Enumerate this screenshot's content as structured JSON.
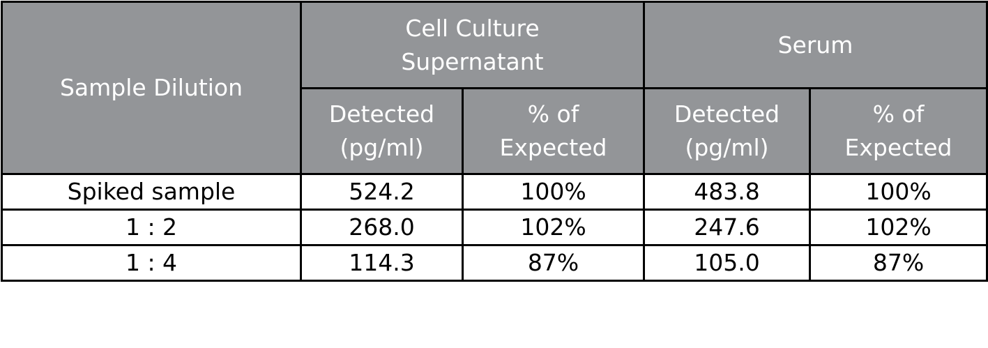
{
  "table": {
    "corner": "Sample Dilution",
    "groups": [
      "Cell Culture Supernatant",
      "Serum"
    ],
    "subheaders": [
      "Detected (pg/ml)",
      "% of Expected",
      "Detected (pg/ml)",
      "% of Expected"
    ],
    "rows": [
      [
        "Spiked sample",
        "524.2",
        "100%",
        "483.8",
        "100%"
      ],
      [
        "1 : 2",
        "268.0",
        "102%",
        "247.6",
        "102%"
      ],
      [
        "1 : 4",
        "114.3",
        "87%",
        "105.0",
        "87%"
      ]
    ]
  }
}
